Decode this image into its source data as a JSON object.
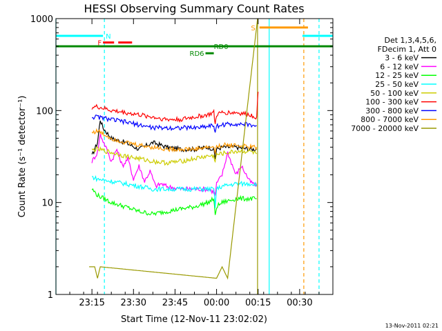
{
  "chart_data": {
    "type": "line",
    "title": "HESSI Observing Summary Count Rates",
    "xlabel": "Start Time (12-Nov-11 23:02:02)",
    "ylabel": "Count Rate (s⁻¹ detector⁻¹)",
    "yscale": "log",
    "ylim": [
      1,
      1000
    ],
    "xlim_minutes": [
      0,
      100
    ],
    "x_ticks": [
      {
        "label": "23:15",
        "value": 13
      },
      {
        "label": "23:30",
        "value": 28
      },
      {
        "label": "23:45",
        "value": 43
      },
      {
        "label": "00:00",
        "value": 58
      },
      {
        "label": "00:15",
        "value": 73
      },
      {
        "label": "00:30",
        "value": 88
      }
    ],
    "y_ticks": [
      {
        "label": "1",
        "value": 1
      },
      {
        "label": "10",
        "value": 10
      },
      {
        "label": "100",
        "value": 100
      },
      {
        "label": "1000",
        "value": 1000
      }
    ],
    "legend_header": [
      "Det 1,3,4,5,6,",
      "FDecim 1, Att 0"
    ],
    "series": [
      {
        "name": "3 - 6 keV",
        "color": "#000000",
        "points": [
          [
            13,
            32
          ],
          [
            15,
            45
          ],
          [
            16,
            80
          ],
          [
            17,
            65
          ],
          [
            20,
            50
          ],
          [
            25,
            45
          ],
          [
            30,
            38
          ],
          [
            35,
            45
          ],
          [
            40,
            40
          ],
          [
            45,
            38
          ],
          [
            50,
            38
          ],
          [
            55,
            40
          ],
          [
            57,
            38
          ],
          [
            57.5,
            30
          ],
          [
            58,
            38
          ],
          [
            60,
            40
          ],
          [
            65,
            40
          ],
          [
            70,
            38
          ],
          [
            72.5,
            38
          ]
        ]
      },
      {
        "name": "6 - 12 keV",
        "color": "#ff00ff",
        "points": [
          [
            13,
            28
          ],
          [
            15,
            35
          ],
          [
            16,
            55
          ],
          [
            18,
            40
          ],
          [
            20,
            28
          ],
          [
            22,
            38
          ],
          [
            24,
            25
          ],
          [
            26,
            30
          ],
          [
            28,
            18
          ],
          [
            30,
            25
          ],
          [
            32,
            17
          ],
          [
            34,
            22
          ],
          [
            36,
            15
          ],
          [
            38,
            16
          ],
          [
            40,
            15
          ],
          [
            45,
            14
          ],
          [
            50,
            14
          ],
          [
            55,
            14
          ],
          [
            57,
            13
          ],
          [
            57.5,
            12
          ],
          [
            58,
            16
          ],
          [
            60,
            20
          ],
          [
            62,
            35
          ],
          [
            65,
            20
          ],
          [
            67,
            25
          ],
          [
            70,
            17
          ],
          [
            72.5,
            15
          ]
        ]
      },
      {
        "name": "12 - 25 keV",
        "color": "#00ff00",
        "points": [
          [
            13,
            14
          ],
          [
            15,
            12
          ],
          [
            20,
            10
          ],
          [
            25,
            9
          ],
          [
            30,
            8
          ],
          [
            35,
            7.5
          ],
          [
            40,
            8
          ],
          [
            45,
            8.5
          ],
          [
            50,
            9
          ],
          [
            55,
            10
          ],
          [
            57,
            11
          ],
          [
            57.5,
            7
          ],
          [
            58,
            9
          ],
          [
            60,
            10
          ],
          [
            65,
            11
          ],
          [
            70,
            11
          ],
          [
            72.5,
            11
          ]
        ]
      },
      {
        "name": "25 - 50 keV",
        "color": "#00ffff",
        "points": [
          [
            13,
            19
          ],
          [
            15,
            18
          ],
          [
            20,
            17
          ],
          [
            25,
            16
          ],
          [
            30,
            15
          ],
          [
            35,
            14
          ],
          [
            40,
            14
          ],
          [
            45,
            14
          ],
          [
            50,
            14
          ],
          [
            55,
            14
          ],
          [
            57,
            14
          ],
          [
            57.5,
            9
          ],
          [
            58,
            14
          ],
          [
            60,
            15
          ],
          [
            65,
            16
          ],
          [
            70,
            16
          ],
          [
            72.5,
            16
          ]
        ]
      },
      {
        "name": "50 - 100 keV",
        "color": "#cccc00",
        "points": [
          [
            13,
            37
          ],
          [
            15,
            38
          ],
          [
            20,
            35
          ],
          [
            25,
            32
          ],
          [
            30,
            30
          ],
          [
            35,
            28
          ],
          [
            40,
            27
          ],
          [
            45,
            28
          ],
          [
            50,
            30
          ],
          [
            55,
            32
          ],
          [
            57,
            32
          ],
          [
            57.5,
            28
          ],
          [
            58,
            33
          ],
          [
            60,
            34
          ],
          [
            65,
            36
          ],
          [
            70,
            36
          ],
          [
            72.5,
            34
          ]
        ]
      },
      {
        "name": "100 - 300 keV",
        "color": "#ff0000",
        "points": [
          [
            13,
            108
          ],
          [
            15,
            110
          ],
          [
            20,
            100
          ],
          [
            25,
            95
          ],
          [
            30,
            90
          ],
          [
            35,
            85
          ],
          [
            40,
            80
          ],
          [
            45,
            80
          ],
          [
            50,
            85
          ],
          [
            55,
            90
          ],
          [
            57,
            95
          ],
          [
            57.5,
            70
          ],
          [
            58,
            90
          ],
          [
            60,
            95
          ],
          [
            65,
            95
          ],
          [
            70,
            90
          ],
          [
            72.5,
            85
          ],
          [
            73,
            160
          ]
        ]
      },
      {
        "name": "300 - 800 keV",
        "color": "#0000ff",
        "points": [
          [
            13,
            85
          ],
          [
            15,
            85
          ],
          [
            20,
            80
          ],
          [
            25,
            75
          ],
          [
            30,
            70
          ],
          [
            35,
            65
          ],
          [
            40,
            65
          ],
          [
            45,
            65
          ],
          [
            50,
            65
          ],
          [
            55,
            68
          ],
          [
            57,
            70
          ],
          [
            57.5,
            55
          ],
          [
            58,
            68
          ],
          [
            60,
            70
          ],
          [
            65,
            72
          ],
          [
            70,
            70
          ],
          [
            72.5,
            68
          ]
        ]
      },
      {
        "name": "800 - 7000 keV",
        "color": "#ff9900",
        "points": [
          [
            13,
            58
          ],
          [
            15,
            60
          ],
          [
            20,
            50
          ],
          [
            25,
            45
          ],
          [
            30,
            42
          ],
          [
            35,
            40
          ],
          [
            40,
            38
          ],
          [
            45,
            38
          ],
          [
            50,
            38
          ],
          [
            55,
            40
          ],
          [
            57,
            40
          ],
          [
            57.5,
            35
          ],
          [
            58,
            40
          ],
          [
            60,
            42
          ],
          [
            65,
            42
          ],
          [
            70,
            40
          ],
          [
            72.5,
            40
          ]
        ]
      },
      {
        "name": "7000 - 20000 keV",
        "color": "#999900",
        "points": [
          [
            12,
            2
          ],
          [
            14,
            2
          ],
          [
            15,
            1.5
          ],
          [
            16,
            2
          ],
          [
            58,
            1.5
          ],
          [
            60,
            2
          ],
          [
            62,
            1.5
          ],
          [
            72.8,
            1000
          ]
        ]
      }
    ],
    "flags": [
      {
        "label": "N",
        "color": "#00ffff",
        "level": 650,
        "segments": [
          [
            0,
            17
          ]
        ]
      },
      {
        "label": "N",
        "color": "#00ffff",
        "level": 650,
        "segments": [
          [
            89,
            100
          ]
        ]
      },
      {
        "label": "F",
        "color": "#ff0000",
        "level": 550,
        "segments": [
          [
            17,
            21
          ],
          [
            22.5,
            27.5
          ]
        ]
      },
      {
        "label": "RD0",
        "color": "#008800",
        "level": 500,
        "segments": [
          [
            0,
            100
          ]
        ]
      },
      {
        "label": "RD6",
        "color": "#008800",
        "level": 420,
        "segments": [
          [
            54,
            57
          ]
        ]
      },
      {
        "label": "S",
        "color": "#ff9900",
        "level": 800,
        "segments": [
          [
            73.5,
            91
          ]
        ]
      }
    ],
    "vertical_markers": [
      {
        "x": 17.5,
        "color": "#00ffff",
        "style": "dashed"
      },
      {
        "x": 72.8,
        "color": "#999900",
        "style": "solid"
      },
      {
        "x": 77,
        "color": "#00ffff",
        "style": "solid"
      },
      {
        "x": 89.5,
        "color": "#ff9900",
        "style": "dashed"
      },
      {
        "x": 95,
        "color": "#00ffff",
        "style": "dashed"
      },
      {
        "x": 0,
        "color": "#00ffff",
        "style": "solid"
      }
    ],
    "footer_date": "13-Nov-2011 02:21"
  }
}
